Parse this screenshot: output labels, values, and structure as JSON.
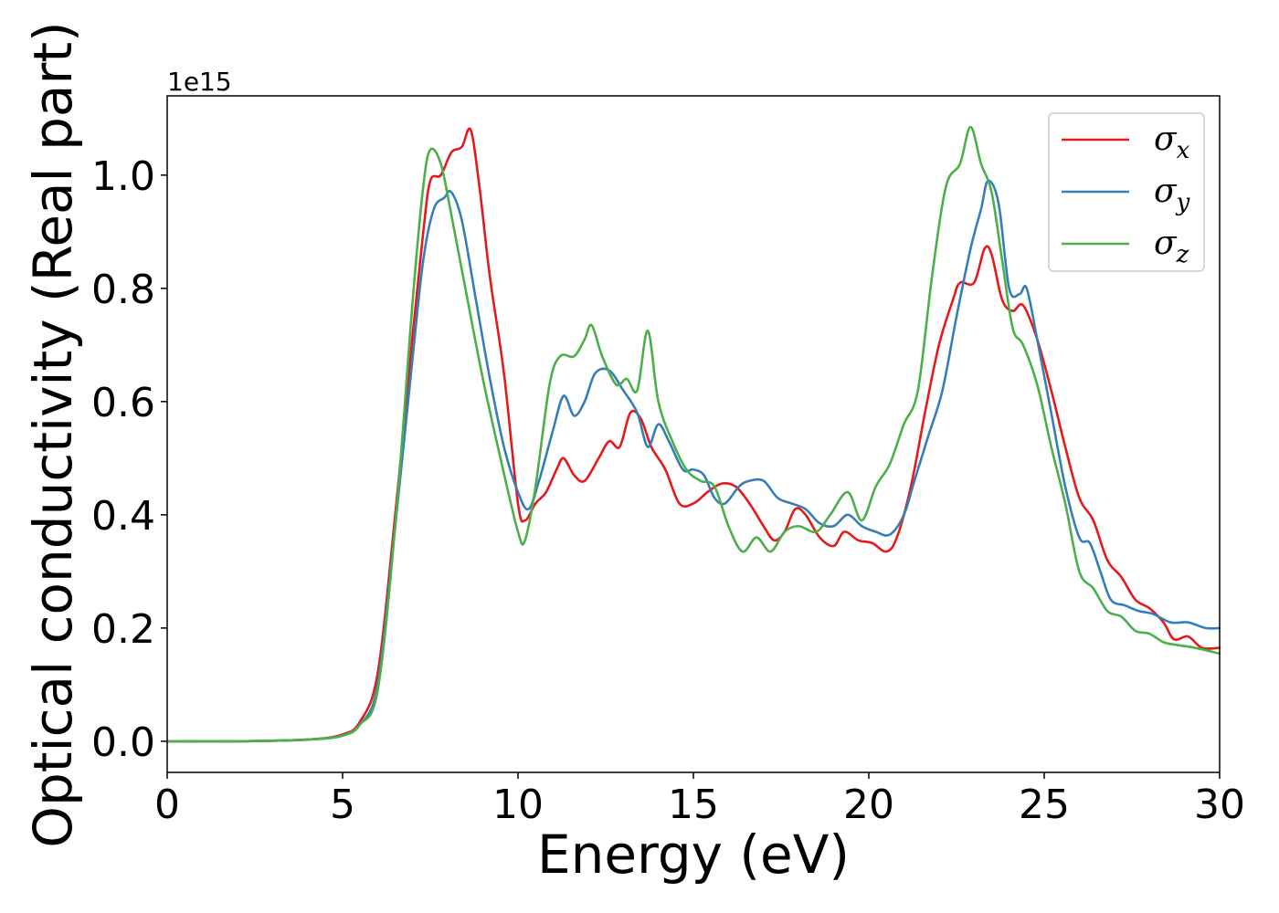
{
  "chart_data": {
    "type": "line",
    "xlabel": "Energy (eV)",
    "ylabel": "Optical conductivity (Real part)",
    "y_offset_text": "1e15",
    "xlim": [
      0,
      30
    ],
    "ylim": [
      -0.055,
      1.14
    ],
    "xticks": [
      0,
      5,
      10,
      15,
      20,
      25,
      30
    ],
    "xtick_labels": [
      "0",
      "5",
      "10",
      "15",
      "20",
      "25",
      "30"
    ],
    "yticks": [
      0.0,
      0.2,
      0.4,
      0.6,
      0.8,
      1.0
    ],
    "ytick_labels": [
      "0.0",
      "0.2",
      "0.4",
      "0.6",
      "0.8",
      "1.0"
    ],
    "grid": false,
    "legend_position": "top-right",
    "series": [
      {
        "name": "σx",
        "symbol": "σ",
        "subscript": "x",
        "color": "#e41a1c",
        "points": [
          [
            0,
            0
          ],
          [
            2,
            0
          ],
          [
            4,
            0.003
          ],
          [
            5,
            0.012
          ],
          [
            5.5,
            0.035
          ],
          [
            6,
            0.12
          ],
          [
            6.5,
            0.4
          ],
          [
            7,
            0.72
          ],
          [
            7.3,
            0.9
          ],
          [
            7.5,
            0.99
          ],
          [
            7.8,
            1.0
          ],
          [
            8.1,
            1.04
          ],
          [
            8.4,
            1.05
          ],
          [
            8.65,
            1.08
          ],
          [
            8.9,
            0.98
          ],
          [
            9.2,
            0.82
          ],
          [
            9.6,
            0.65
          ],
          [
            10,
            0.42
          ],
          [
            10.2,
            0.39
          ],
          [
            10.5,
            0.42
          ],
          [
            10.8,
            0.44
          ],
          [
            11.1,
            0.48
          ],
          [
            11.3,
            0.5
          ],
          [
            11.6,
            0.47
          ],
          [
            11.9,
            0.46
          ],
          [
            12.3,
            0.5
          ],
          [
            12.6,
            0.53
          ],
          [
            12.9,
            0.52
          ],
          [
            13.2,
            0.58
          ],
          [
            13.5,
            0.57
          ],
          [
            13.8,
            0.52
          ],
          [
            14.2,
            0.48
          ],
          [
            14.6,
            0.42
          ],
          [
            15,
            0.42
          ],
          [
            15.4,
            0.44
          ],
          [
            15.8,
            0.455
          ],
          [
            16.2,
            0.45
          ],
          [
            16.6,
            0.42
          ],
          [
            17,
            0.38
          ],
          [
            17.3,
            0.355
          ],
          [
            17.6,
            0.37
          ],
          [
            17.9,
            0.41
          ],
          [
            18.2,
            0.4
          ],
          [
            18.6,
            0.36
          ],
          [
            19,
            0.345
          ],
          [
            19.3,
            0.37
          ],
          [
            19.7,
            0.355
          ],
          [
            20.1,
            0.35
          ],
          [
            20.5,
            0.335
          ],
          [
            20.8,
            0.36
          ],
          [
            21.2,
            0.45
          ],
          [
            21.6,
            0.58
          ],
          [
            22,
            0.7
          ],
          [
            22.4,
            0.78
          ],
          [
            22.6,
            0.81
          ],
          [
            23,
            0.81
          ],
          [
            23.3,
            0.87
          ],
          [
            23.5,
            0.86
          ],
          [
            23.8,
            0.78
          ],
          [
            24.1,
            0.76
          ],
          [
            24.4,
            0.77
          ],
          [
            24.8,
            0.71
          ],
          [
            25.2,
            0.62
          ],
          [
            25.6,
            0.52
          ],
          [
            26,
            0.43
          ],
          [
            26.4,
            0.39
          ],
          [
            26.8,
            0.32
          ],
          [
            27.2,
            0.29
          ],
          [
            27.6,
            0.25
          ],
          [
            28,
            0.235
          ],
          [
            28.4,
            0.21
          ],
          [
            28.7,
            0.18
          ],
          [
            29.1,
            0.185
          ],
          [
            29.5,
            0.165
          ],
          [
            30,
            0.165
          ]
        ]
      },
      {
        "name": "σy",
        "symbol": "σ",
        "subscript": "y",
        "color": "#377eb8",
        "points": [
          [
            0,
            0
          ],
          [
            2,
            0
          ],
          [
            4,
            0.003
          ],
          [
            5,
            0.01
          ],
          [
            5.5,
            0.03
          ],
          [
            6,
            0.1
          ],
          [
            6.5,
            0.38
          ],
          [
            7,
            0.68
          ],
          [
            7.3,
            0.85
          ],
          [
            7.6,
            0.94
          ],
          [
            7.9,
            0.96
          ],
          [
            8.1,
            0.97
          ],
          [
            8.4,
            0.92
          ],
          [
            8.8,
            0.78
          ],
          [
            9.2,
            0.64
          ],
          [
            9.6,
            0.52
          ],
          [
            10,
            0.44
          ],
          [
            10.3,
            0.41
          ],
          [
            10.6,
            0.46
          ],
          [
            11,
            0.55
          ],
          [
            11.3,
            0.61
          ],
          [
            11.6,
            0.575
          ],
          [
            11.9,
            0.6
          ],
          [
            12.2,
            0.65
          ],
          [
            12.6,
            0.655
          ],
          [
            13,
            0.62
          ],
          [
            13.4,
            0.58
          ],
          [
            13.7,
            0.52
          ],
          [
            14,
            0.56
          ],
          [
            14.3,
            0.53
          ],
          [
            14.7,
            0.48
          ],
          [
            15,
            0.48
          ],
          [
            15.3,
            0.47
          ],
          [
            15.6,
            0.43
          ],
          [
            15.9,
            0.42
          ],
          [
            16.3,
            0.45
          ],
          [
            16.6,
            0.46
          ],
          [
            17,
            0.46
          ],
          [
            17.4,
            0.43
          ],
          [
            17.8,
            0.42
          ],
          [
            18.2,
            0.41
          ],
          [
            18.6,
            0.385
          ],
          [
            19,
            0.38
          ],
          [
            19.4,
            0.4
          ],
          [
            19.8,
            0.38
          ],
          [
            20.2,
            0.37
          ],
          [
            20.6,
            0.365
          ],
          [
            21,
            0.4
          ],
          [
            21.3,
            0.46
          ],
          [
            21.7,
            0.54
          ],
          [
            22.1,
            0.62
          ],
          [
            22.5,
            0.75
          ],
          [
            22.9,
            0.87
          ],
          [
            23.2,
            0.94
          ],
          [
            23.4,
            0.99
          ],
          [
            23.7,
            0.95
          ],
          [
            24,
            0.8
          ],
          [
            24.3,
            0.79
          ],
          [
            24.5,
            0.8
          ],
          [
            24.8,
            0.71
          ],
          [
            25.2,
            0.58
          ],
          [
            25.6,
            0.45
          ],
          [
            26,
            0.36
          ],
          [
            26.3,
            0.35
          ],
          [
            26.6,
            0.3
          ],
          [
            26.9,
            0.25
          ],
          [
            27.3,
            0.24
          ],
          [
            27.7,
            0.23
          ],
          [
            28.1,
            0.225
          ],
          [
            28.6,
            0.21
          ],
          [
            29.1,
            0.21
          ],
          [
            29.6,
            0.2
          ],
          [
            30,
            0.2
          ]
        ]
      },
      {
        "name": "σz",
        "symbol": "σ",
        "subscript": "z",
        "color": "#4daf4a",
        "points": [
          [
            0,
            0
          ],
          [
            2,
            0
          ],
          [
            4,
            0.003
          ],
          [
            5,
            0.01
          ],
          [
            5.5,
            0.03
          ],
          [
            6,
            0.09
          ],
          [
            6.5,
            0.38
          ],
          [
            7,
            0.78
          ],
          [
            7.3,
            0.98
          ],
          [
            7.5,
            1.045
          ],
          [
            7.8,
            1.02
          ],
          [
            8.1,
            0.93
          ],
          [
            8.5,
            0.8
          ],
          [
            9,
            0.64
          ],
          [
            9.5,
            0.5
          ],
          [
            10,
            0.37
          ],
          [
            10.2,
            0.355
          ],
          [
            10.5,
            0.45
          ],
          [
            10.9,
            0.63
          ],
          [
            11.2,
            0.68
          ],
          [
            11.6,
            0.68
          ],
          [
            11.9,
            0.71
          ],
          [
            12.1,
            0.735
          ],
          [
            12.4,
            0.68
          ],
          [
            12.8,
            0.63
          ],
          [
            13.1,
            0.64
          ],
          [
            13.4,
            0.62
          ],
          [
            13.7,
            0.725
          ],
          [
            14,
            0.6
          ],
          [
            14.4,
            0.53
          ],
          [
            14.8,
            0.48
          ],
          [
            15.2,
            0.46
          ],
          [
            15.6,
            0.45
          ],
          [
            16,
            0.38
          ],
          [
            16.4,
            0.335
          ],
          [
            16.8,
            0.36
          ],
          [
            17.2,
            0.335
          ],
          [
            17.6,
            0.37
          ],
          [
            18,
            0.38
          ],
          [
            18.5,
            0.37
          ],
          [
            18.9,
            0.4
          ],
          [
            19.4,
            0.44
          ],
          [
            19.8,
            0.39
          ],
          [
            20.2,
            0.45
          ],
          [
            20.6,
            0.49
          ],
          [
            21,
            0.56
          ],
          [
            21.4,
            0.62
          ],
          [
            21.8,
            0.82
          ],
          [
            22.2,
            0.98
          ],
          [
            22.6,
            1.02
          ],
          [
            22.9,
            1.085
          ],
          [
            23.2,
            1.02
          ],
          [
            23.5,
            0.97
          ],
          [
            23.8,
            0.85
          ],
          [
            24.1,
            0.73
          ],
          [
            24.4,
            0.7
          ],
          [
            24.8,
            0.63
          ],
          [
            25.2,
            0.52
          ],
          [
            25.6,
            0.42
          ],
          [
            26,
            0.3
          ],
          [
            26.4,
            0.27
          ],
          [
            26.8,
            0.23
          ],
          [
            27.2,
            0.22
          ],
          [
            27.6,
            0.195
          ],
          [
            28,
            0.19
          ],
          [
            28.4,
            0.175
          ],
          [
            28.8,
            0.17
          ],
          [
            29.3,
            0.165
          ],
          [
            30,
            0.155
          ]
        ]
      }
    ]
  }
}
